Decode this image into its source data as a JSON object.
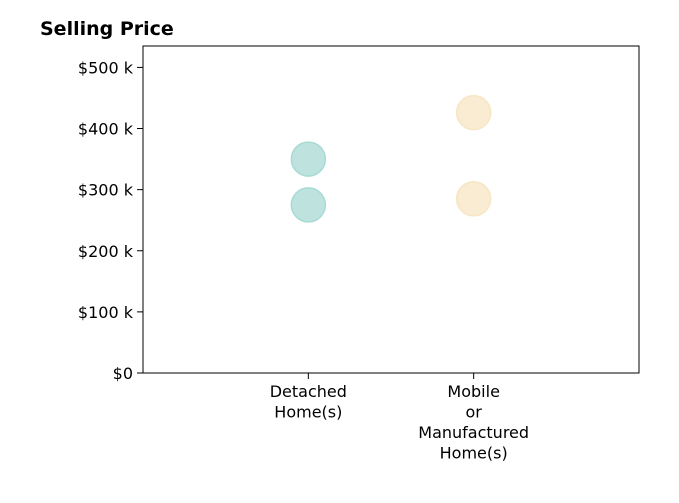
{
  "chart_data": {
    "type": "scatter",
    "title": "Selling Price",
    "xlabel": "",
    "ylabel": "",
    "categories": [
      [
        "Detached",
        "Home(s)"
      ],
      [
        "Mobile",
        "or",
        "Manufactured",
        "Home(s)"
      ]
    ],
    "x_range": [
      -1,
      2
    ],
    "ylim": [
      0,
      535
    ],
    "y_ticks": [
      0,
      100,
      200,
      300,
      400,
      500
    ],
    "y_tick_labels": [
      "$0",
      "$100 k",
      "$200 k",
      "$300 k",
      "$400 k",
      "$500 k"
    ],
    "grid": false,
    "legend": "none",
    "series": [
      {
        "category_index": 0,
        "color": "#a8dad4",
        "values": [
          350,
          275
        ]
      },
      {
        "category_index": 1,
        "color": "#f7e6c4",
        "values": [
          426,
          285
        ]
      }
    ]
  }
}
